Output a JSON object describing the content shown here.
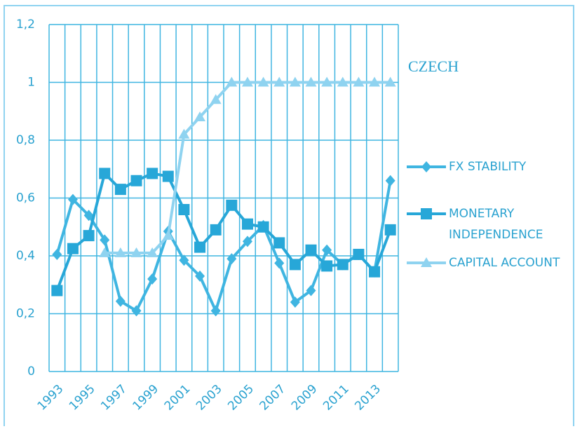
{
  "chart_data": {
    "type": "line",
    "title": "CZECH",
    "categories": [
      "1993",
      null,
      "1995",
      null,
      "1997",
      null,
      "1999",
      null,
      "2001",
      null,
      "2003",
      null,
      "2005",
      null,
      "2007",
      null,
      "2009",
      null,
      "2011",
      null,
      "2013",
      null
    ],
    "series": [
      {
        "name": "FX STABILITY",
        "color": "#3fb5e1",
        "marker": "diamond",
        "values": [
          0.405,
          0.595,
          0.54,
          0.455,
          0.243,
          0.21,
          0.32,
          0.485,
          0.385,
          0.33,
          0.21,
          0.39,
          0.45,
          0.505,
          0.375,
          0.24,
          0.28,
          0.42,
          0.37,
          0.405,
          0.345,
          0.66
        ]
      },
      {
        "name": "MONETARY INDEPENDENCE",
        "color": "#27a7d8",
        "marker": "square",
        "values": [
          0.28,
          0.425,
          0.47,
          0.685,
          0.63,
          0.66,
          0.685,
          0.675,
          0.56,
          0.43,
          0.49,
          0.575,
          0.51,
          0.5,
          0.445,
          0.37,
          0.42,
          0.365,
          0.37,
          0.405,
          0.345,
          0.49
        ]
      },
      {
        "name": "CAPITAL ACCOUNT",
        "color": "#8fd3f0",
        "marker": "triangle",
        "values": [
          null,
          null,
          null,
          0.41,
          0.41,
          0.41,
          0.41,
          0.47,
          0.82,
          0.88,
          0.94,
          1,
          1,
          1,
          1,
          1,
          1,
          1,
          1,
          1,
          1,
          1
        ]
      }
    ],
    "ylim": [
      0,
      1.2
    ],
    "yticks": [
      0,
      {
        "value": 0.2,
        "label": "0,2"
      },
      {
        "value": 0.4,
        "label": "0,4"
      },
      {
        "value": 0.6,
        "label": "0,6"
      },
      {
        "value": 0.8,
        "label": "0,8"
      },
      1,
      {
        "value": 1.2,
        "label": "1,2"
      }
    ],
    "grid": true
  }
}
